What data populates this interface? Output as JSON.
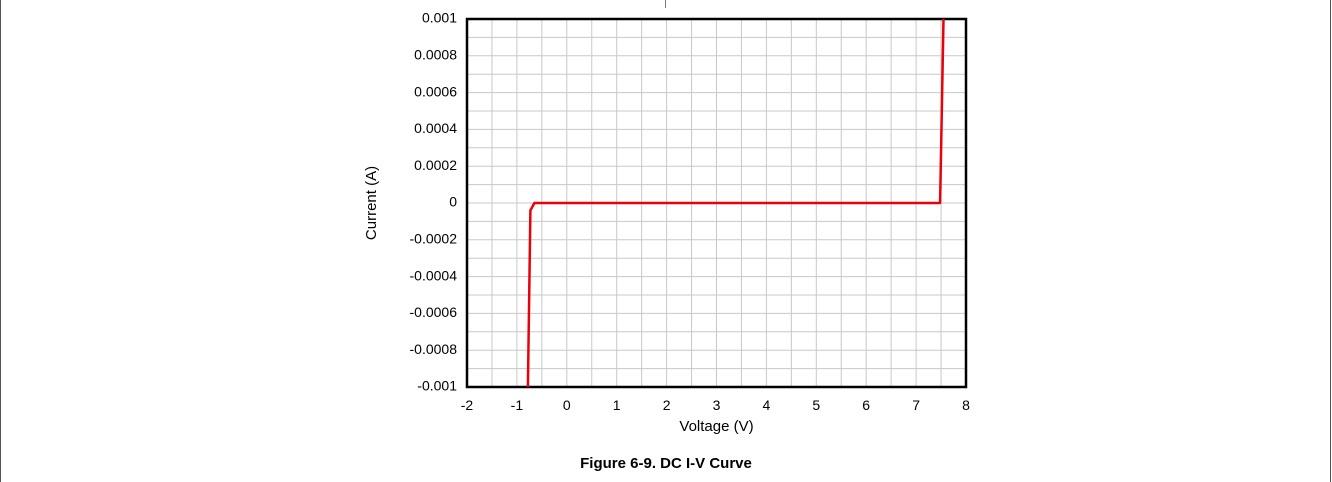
{
  "chart_data": {
    "type": "line",
    "caption": "Figure 6-9. DC I-V Curve",
    "xlabel": "Voltage (V)",
    "ylabel": "Current (A)",
    "xlim": [
      -2,
      8
    ],
    "ylim": [
      -0.001,
      0.001
    ],
    "x_ticks": [
      "-2",
      "-1",
      "0",
      "1",
      "2",
      "3",
      "4",
      "5",
      "6",
      "7",
      "8"
    ],
    "y_ticks": [
      "0.001",
      "0.0008",
      "0.0006",
      "0.0004",
      "0.0002",
      "0",
      "-0.0002",
      "-0.0004",
      "-0.0006",
      "-0.0008",
      "-0.001"
    ],
    "grid": true,
    "series": [
      {
        "color": "#e8000b",
        "x": [
          -0.78,
          -0.73,
          -0.65,
          0,
          7.0,
          7.48,
          7.55
        ],
        "y": [
          -0.001,
          -4e-05,
          0,
          0,
          0,
          0,
          0.001
        ]
      }
    ]
  }
}
